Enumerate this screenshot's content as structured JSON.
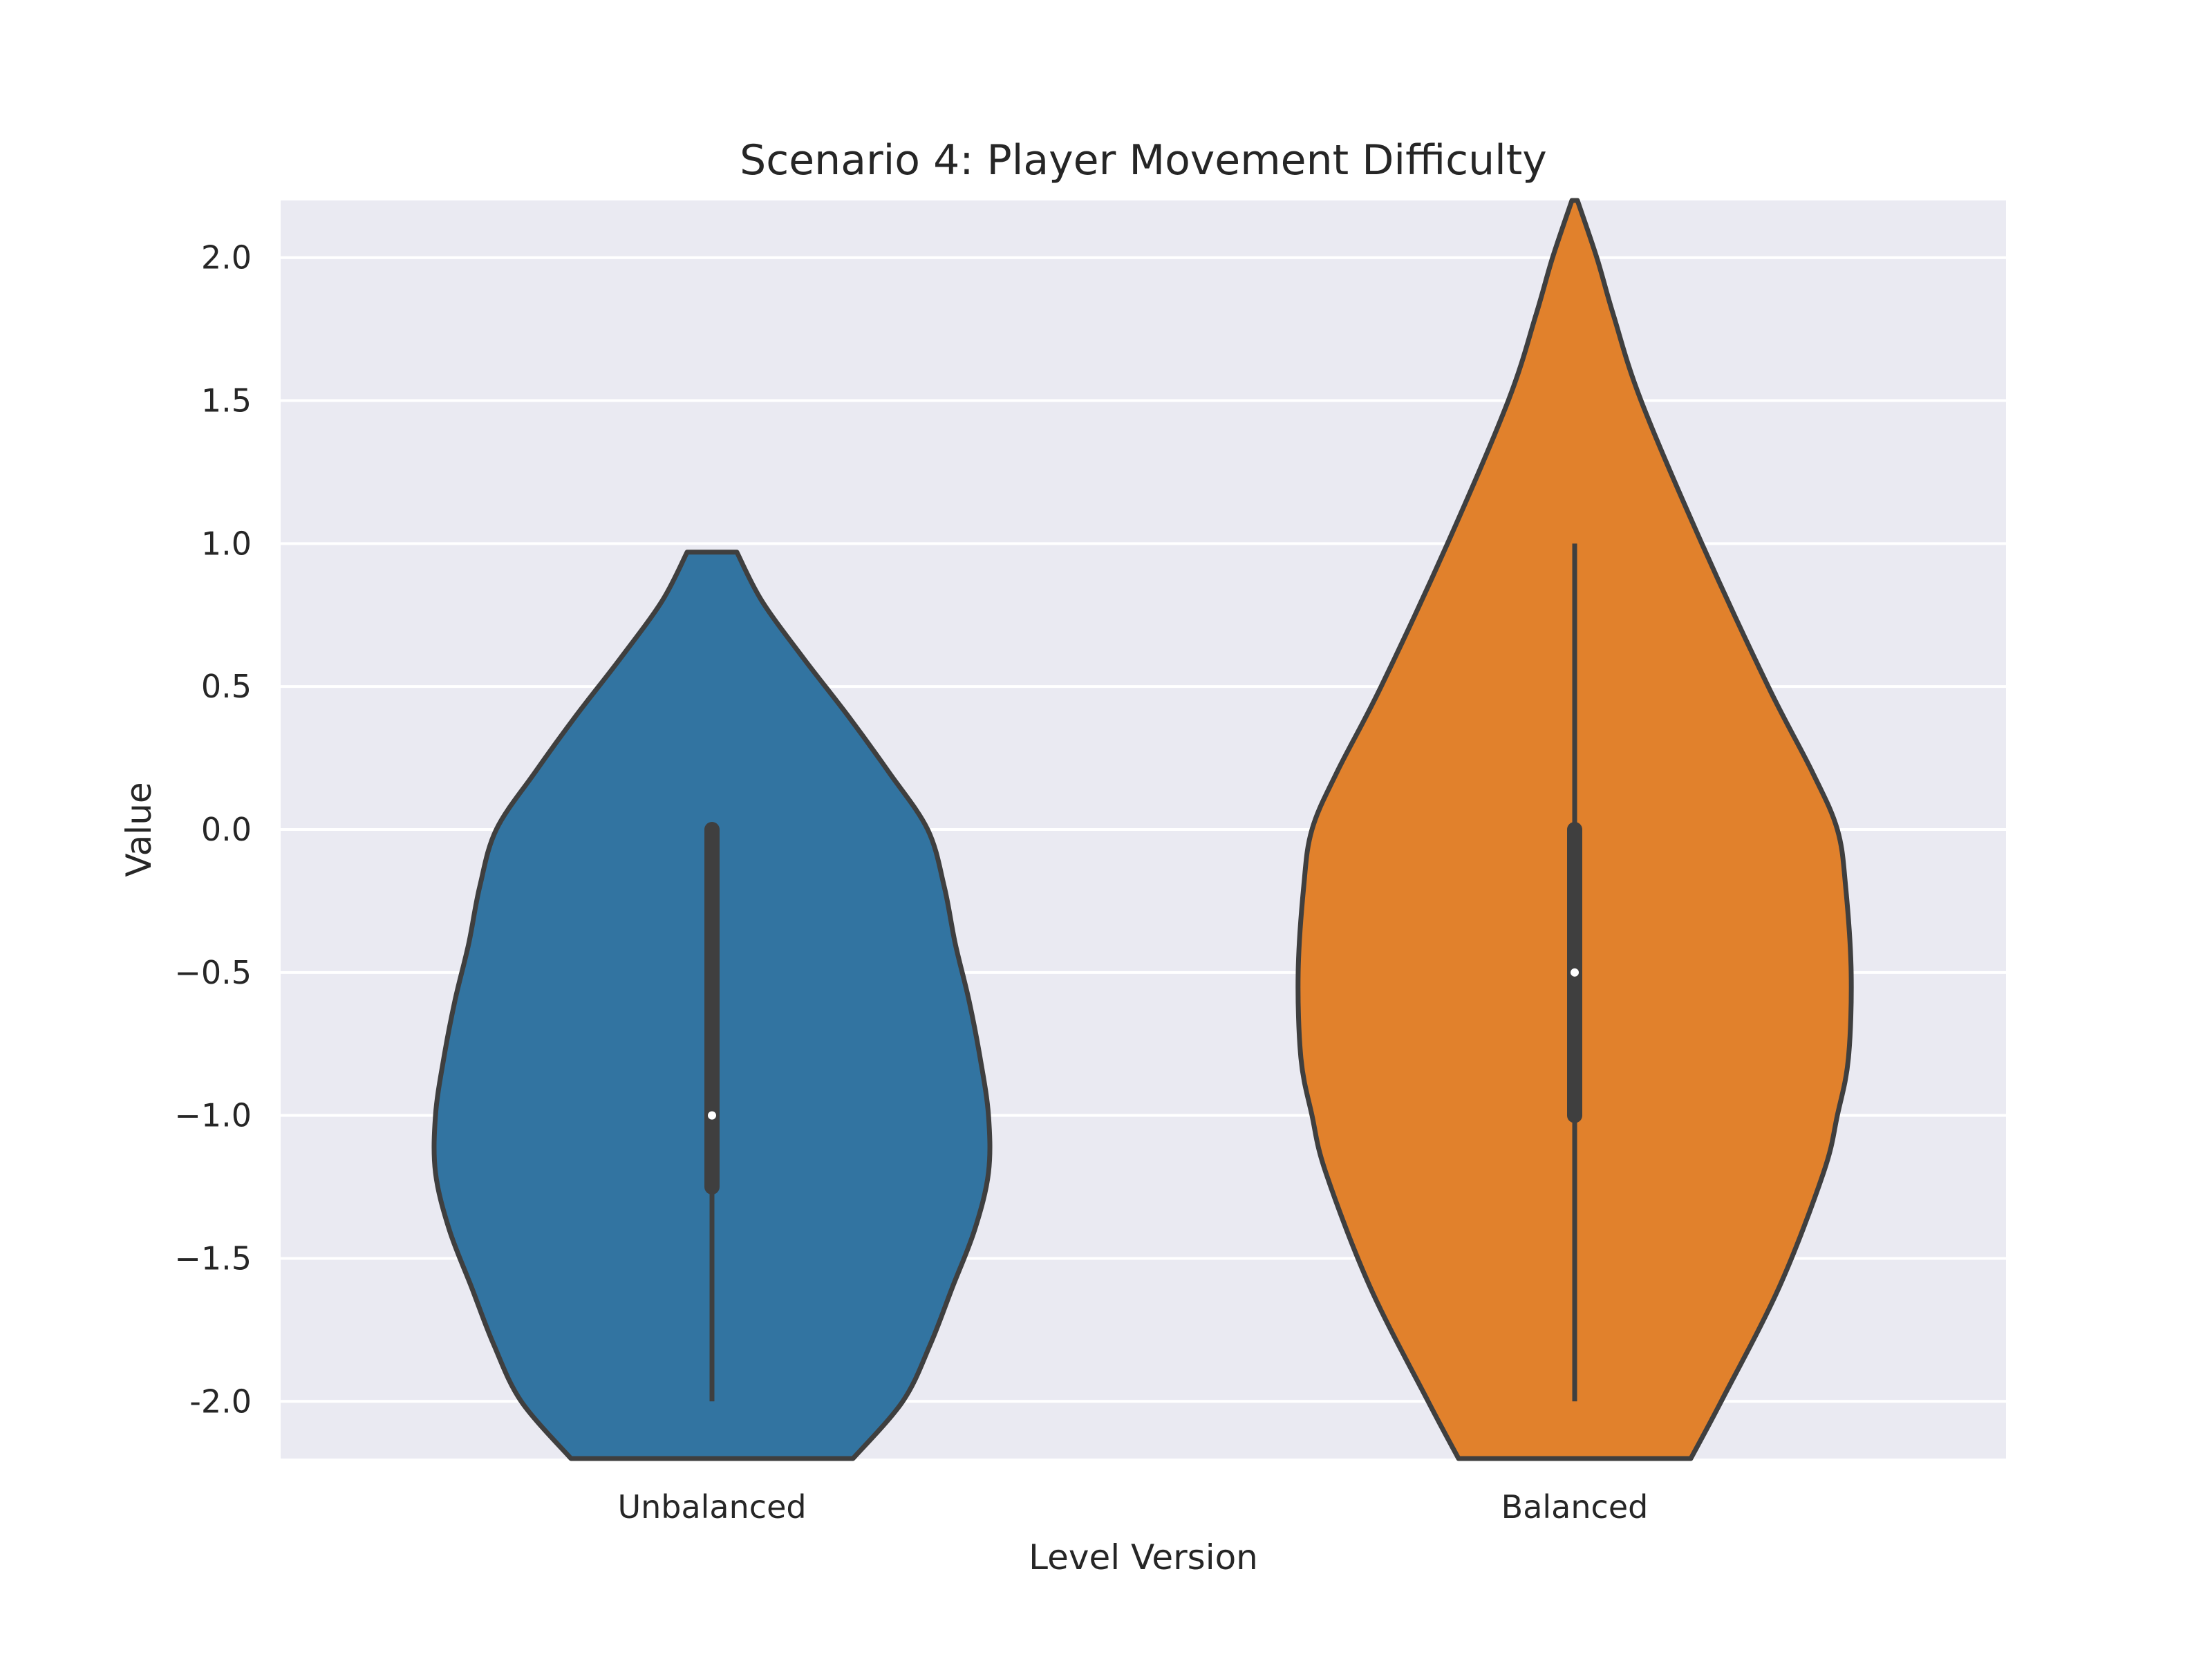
{
  "chart_data": {
    "type": "violin",
    "title": "Scenario 4: Player Movement Difficulty",
    "xlabel": "Level Version",
    "ylabel": "Value",
    "ylim": [
      -2.2,
      2.2
    ],
    "yticks": [
      2.0,
      1.5,
      1.0,
      0.5,
      0.0,
      -0.5,
      -1.0,
      -1.5,
      -2.0
    ],
    "ytick_labels": [
      "2.0",
      "1.5",
      "1.0",
      "0.5",
      "0.0",
      "−0.5",
      "−1.0",
      "−1.5",
      "-2.0"
    ],
    "grid": true,
    "background": "#eaeaf2",
    "categories": [
      "Unbalanced",
      "Balanced"
    ],
    "violins": [
      {
        "category": "Unbalanced",
        "color": "#3274a1",
        "median": -1.0,
        "q1": -1.25,
        "q3": 0.0,
        "whisker_low": -2.0,
        "whisker_high": 0.0,
        "top_cut": 0.97,
        "density_profile": [
          [
            -2.2,
            0.51
          ],
          [
            -2.0,
            0.69
          ],
          [
            -1.8,
            0.79
          ],
          [
            -1.6,
            0.87
          ],
          [
            -1.4,
            0.95
          ],
          [
            -1.2,
            1.0
          ],
          [
            -1.0,
            1.0
          ],
          [
            -0.8,
            0.97
          ],
          [
            -0.6,
            0.93
          ],
          [
            -0.4,
            0.88
          ],
          [
            -0.2,
            0.84
          ],
          [
            0.0,
            0.78
          ],
          [
            0.2,
            0.64
          ],
          [
            0.4,
            0.49
          ],
          [
            0.6,
            0.33
          ],
          [
            0.8,
            0.18
          ],
          [
            0.97,
            0.09
          ]
        ]
      },
      {
        "category": "Balanced",
        "color": "#e1812c",
        "median": -0.5,
        "q1": -1.0,
        "q3": 0.0,
        "whisker_low": -2.0,
        "whisker_high": 1.0,
        "density_profile": [
          [
            -2.2,
            0.42
          ],
          [
            -2.0,
            0.53
          ],
          [
            -1.6,
            0.74
          ],
          [
            -1.2,
            0.9
          ],
          [
            -1.0,
            0.95
          ],
          [
            -0.8,
            0.99
          ],
          [
            -0.5,
            1.0
          ],
          [
            -0.2,
            0.98
          ],
          [
            0.0,
            0.95
          ],
          [
            0.2,
            0.86
          ],
          [
            0.5,
            0.7
          ],
          [
            1.0,
            0.46
          ],
          [
            1.5,
            0.24
          ],
          [
            1.8,
            0.14
          ],
          [
            2.0,
            0.08
          ],
          [
            2.2,
            0.01
          ]
        ]
      }
    ]
  }
}
